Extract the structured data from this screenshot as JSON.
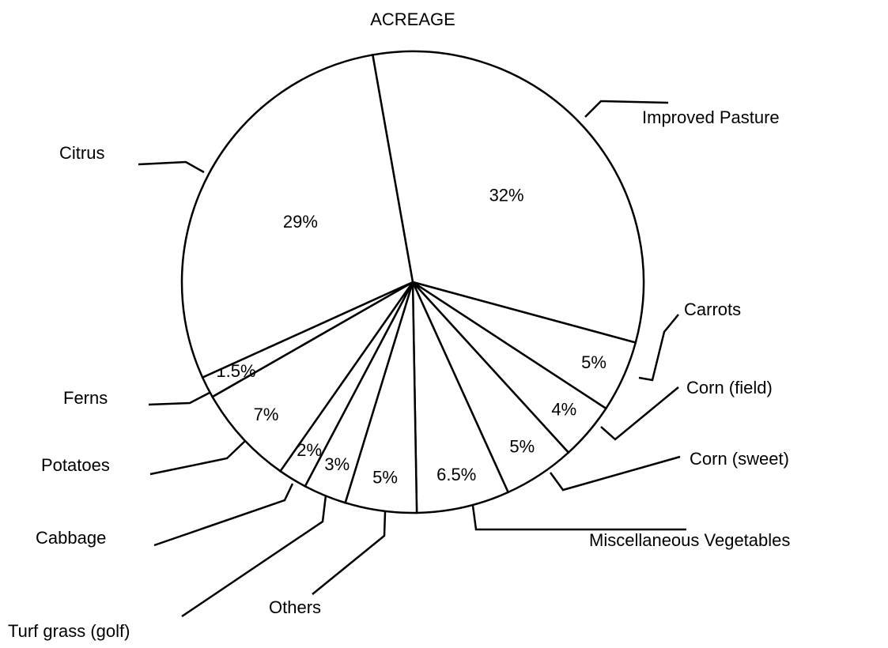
{
  "chart_data": {
    "type": "pie",
    "title": "ACREAGE",
    "categories": [
      "Improved Pasture",
      "Carrots",
      "Corn (field)",
      "Corn (sweet)",
      "Miscellaneous Vegetables",
      "Others",
      "Turf grass (golf)",
      "Cabbage",
      "Potatoes",
      "Ferns",
      "Citrus"
    ],
    "values": [
      32,
      5,
      4,
      5,
      6.5,
      5,
      3,
      2,
      7,
      1.5,
      29
    ],
    "value_labels": [
      "32%",
      "5%",
      "4%",
      "5%",
      "6.5%",
      "5%",
      "3%",
      "2%",
      "7%",
      "1.5%",
      "29%"
    ],
    "color": "#ffffff"
  }
}
